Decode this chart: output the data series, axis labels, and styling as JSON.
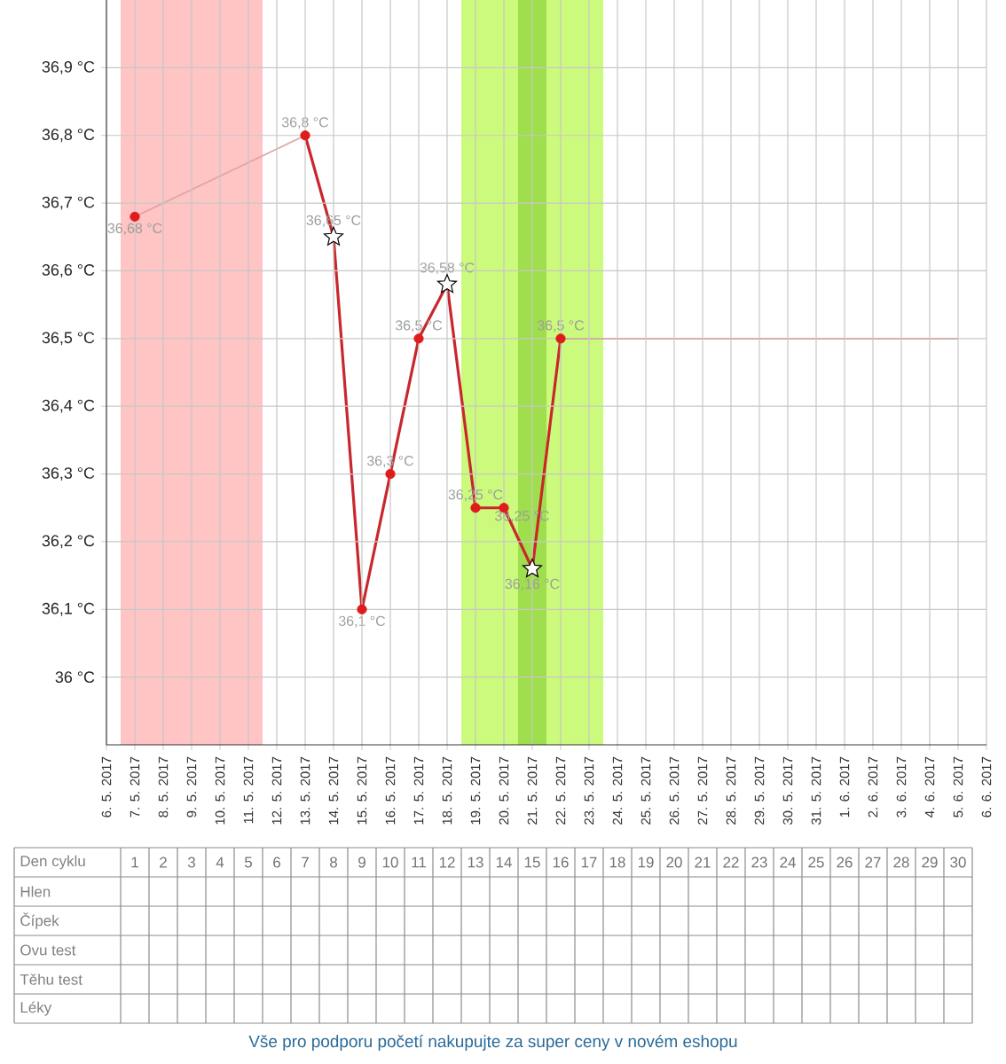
{
  "chart_data": {
    "type": "line",
    "xlim": [
      "2017-05-06",
      "2017-06-06"
    ],
    "xticks": [
      {
        "value": "2017-05-06",
        "label": "6. 5. 2017"
      },
      {
        "value": "2017-05-07",
        "label": "7. 5. 2017"
      },
      {
        "value": "2017-05-08",
        "label": "8. 5. 2017"
      },
      {
        "value": "2017-05-09",
        "label": "9. 5. 2017"
      },
      {
        "value": "2017-05-10",
        "label": "10. 5. 2017"
      },
      {
        "value": "2017-05-11",
        "label": "11. 5. 2017"
      },
      {
        "value": "2017-05-12",
        "label": "12. 5. 2017"
      },
      {
        "value": "2017-05-13",
        "label": "13. 5. 2017"
      },
      {
        "value": "2017-05-14",
        "label": "14. 5. 2017"
      },
      {
        "value": "2017-05-15",
        "label": "15. 5. 2017"
      },
      {
        "value": "2017-05-16",
        "label": "16. 5. 2017"
      },
      {
        "value": "2017-05-17",
        "label": "17. 5. 2017"
      },
      {
        "value": "2017-05-18",
        "label": "18. 5. 2017"
      },
      {
        "value": "2017-05-19",
        "label": "19. 5. 2017"
      },
      {
        "value": "2017-05-20",
        "label": "20. 5. 2017"
      },
      {
        "value": "2017-05-21",
        "label": "21. 5. 2017"
      },
      {
        "value": "2017-05-22",
        "label": "22. 5. 2017"
      },
      {
        "value": "2017-05-23",
        "label": "23. 5. 2017"
      },
      {
        "value": "2017-05-24",
        "label": "24. 5. 2017"
      },
      {
        "value": "2017-05-25",
        "label": "25. 5. 2017"
      },
      {
        "value": "2017-05-26",
        "label": "26. 5. 2017"
      },
      {
        "value": "2017-05-27",
        "label": "27. 5. 2017"
      },
      {
        "value": "2017-05-28",
        "label": "28. 5. 2017"
      },
      {
        "value": "2017-05-29",
        "label": "29. 5. 2017"
      },
      {
        "value": "2017-05-30",
        "label": "30. 5. 2017"
      },
      {
        "value": "2017-05-31",
        "label": "31. 5. 2017"
      },
      {
        "value": "2017-06-01",
        "label": "1. 6. 2017"
      },
      {
        "value": "2017-06-02",
        "label": "2. 6. 2017"
      },
      {
        "value": "2017-06-03",
        "label": "3. 6. 2017"
      },
      {
        "value": "2017-06-04",
        "label": "4. 6. 2017"
      },
      {
        "value": "2017-06-05",
        "label": "5. 6. 2017"
      },
      {
        "value": "2017-06-06",
        "label": "6. 6. 2017"
      }
    ],
    "ylim": [
      35.9,
      37.0
    ],
    "yticks": [
      {
        "value": 36.0,
        "label": "36 °C"
      },
      {
        "value": 36.1,
        "label": "36,1 °C"
      },
      {
        "value": 36.2,
        "label": "36,2 °C"
      },
      {
        "value": 36.3,
        "label": "36,3 °C"
      },
      {
        "value": 36.4,
        "label": "36,4 °C"
      },
      {
        "value": 36.5,
        "label": "36,5 °C"
      },
      {
        "value": 36.6,
        "label": "36,6 °C"
      },
      {
        "value": 36.7,
        "label": "36,7 °C"
      },
      {
        "value": 36.8,
        "label": "36,8 °C"
      },
      {
        "value": 36.9,
        "label": "36,9 °C"
      }
    ],
    "x2lim": [
      "2017-05-02T18:00",
      "2017-06-05T12:00"
    ],
    "x2label": "Den cyklu",
    "x2ticks": [
      {
        "value": "2017-05-07",
        "label": "1"
      },
      {
        "value": "2017-05-08",
        "label": "2"
      },
      {
        "value": "2017-05-09",
        "label": "3"
      },
      {
        "value": "2017-05-10",
        "label": "4"
      },
      {
        "value": "2017-05-11",
        "label": "5"
      },
      {
        "value": "2017-05-12",
        "label": "6"
      },
      {
        "value": "2017-05-13",
        "label": "7"
      },
      {
        "value": "2017-05-14",
        "label": "8"
      },
      {
        "value": "2017-05-15",
        "label": "9"
      },
      {
        "value": "2017-05-16",
        "label": "10"
      },
      {
        "value": "2017-05-17",
        "label": "11"
      },
      {
        "value": "2017-05-18",
        "label": "12"
      },
      {
        "value": "2017-05-19",
        "label": "13"
      },
      {
        "value": "2017-05-20",
        "label": "14"
      },
      {
        "value": "2017-05-21",
        "label": "15"
      },
      {
        "value": "2017-05-22",
        "label": "16"
      },
      {
        "value": "2017-05-23",
        "label": "17"
      },
      {
        "value": "2017-05-24",
        "label": "18"
      },
      {
        "value": "2017-05-25",
        "label": "19"
      },
      {
        "value": "2017-05-26",
        "label": "20"
      },
      {
        "value": "2017-05-27",
        "label": "21"
      },
      {
        "value": "2017-05-28",
        "label": "22"
      },
      {
        "value": "2017-05-29",
        "label": "23"
      },
      {
        "value": "2017-05-30",
        "label": "24"
      },
      {
        "value": "2017-05-31",
        "label": "25"
      },
      {
        "value": "2017-06-01",
        "label": "26"
      },
      {
        "value": "2017-06-02",
        "label": "27"
      },
      {
        "value": "2017-06-03",
        "label": "28"
      },
      {
        "value": "2017-06-04",
        "label": "29"
      },
      {
        "value": "2017-06-05",
        "label": "30"
      }
    ],
    "grid": true,
    "line_style": "solid",
    "bands": [
      {
        "axis": "x",
        "from": "2017-05-06T12:00",
        "to": "2017-05-11T12:00",
        "color": "#ffc4c4"
      },
      {
        "axis": "x",
        "from": "2017-05-18T12:00",
        "to": "2017-05-23T12:00",
        "color": "#ccfa7c"
      },
      {
        "axis": "x",
        "from": "2017-05-20T12:00",
        "to": "2017-05-21T12:00",
        "color": "#9fde4c"
      }
    ],
    "series": [
      {
        "color": "#c8282d",
        "marker": "none",
        "x": [
          "2017-05-13",
          "2017-05-14",
          "2017-05-15",
          "2017-05-16",
          "2017-05-17",
          "2017-05-18",
          "2017-05-19",
          "2017-05-20",
          "2017-05-21",
          "2017-05-22"
        ],
        "values": [
          36.8,
          36.65,
          36.1,
          36.3,
          36.5,
          36.58,
          36.25,
          36.25,
          36.16,
          36.5
        ]
      },
      {
        "color": "#e3a5a5",
        "marker": "none",
        "x": [
          "2017-05-07",
          "2017-05-13"
        ],
        "values": [
          36.68,
          36.8
        ]
      },
      {
        "color": "#e07070",
        "marker": "none",
        "x": [
          "2017-05-22",
          "2017-06-05"
        ],
        "values": [
          36.5,
          36.5
        ]
      },
      {
        "type": "scatter",
        "color": "#e01b1b",
        "marker": "circle",
        "x": [
          "2017-05-07",
          "2017-05-13",
          "2017-05-15",
          "2017-05-16",
          "2017-05-17",
          "2017-05-19",
          "2017-05-20",
          "2017-05-22"
        ],
        "values": [
          36.68,
          36.8,
          36.1,
          36.3,
          36.5,
          36.25,
          36.25,
          36.5
        ],
        "value_labels": [
          "36,68 °C",
          "36,8 °C",
          "36,1 °C",
          "36,3 °C",
          "36,5 °C",
          "36,25 °C",
          "36,25 °C",
          "36,5 °C"
        ]
      },
      {
        "type": "scatter",
        "color": "#ffffff",
        "marker": "star",
        "x": [
          "2017-05-14",
          "2017-05-18",
          "2017-05-21"
        ],
        "values": [
          36.65,
          36.58,
          36.16
        ],
        "value_labels": [
          "36,65 °C",
          "36,58 °C",
          "36,16 °C"
        ]
      }
    ],
    "annotations": [
      "Hlen",
      "Čípek",
      "Ovu test",
      "Těhu test",
      "Léky",
      "Vše pro podporu početí nakupujte za super ceny v novém eshopu"
    ]
  }
}
